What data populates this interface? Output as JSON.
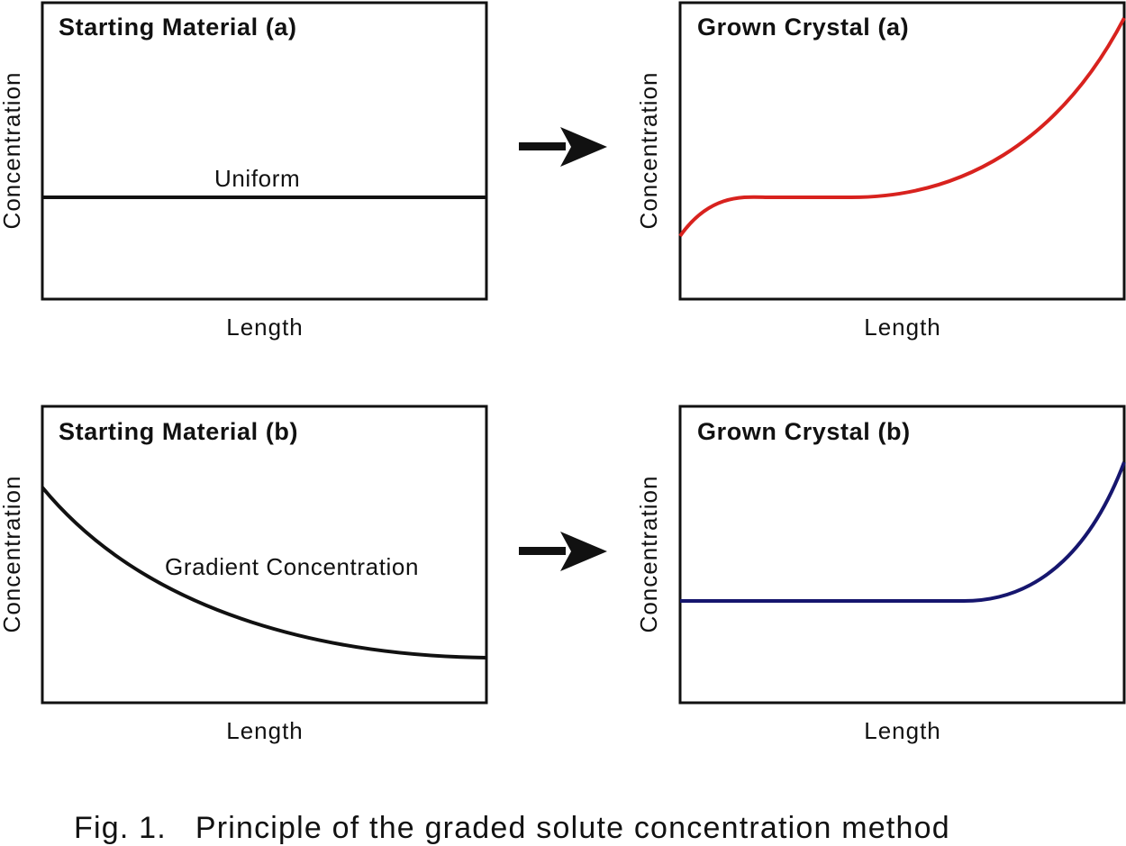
{
  "panels": {
    "start_a": {
      "title": "Starting Material (a)",
      "xlabel": "Length",
      "ylabel": "Concentration",
      "note": "Uniform",
      "curve_color": "#111111"
    },
    "grown_a": {
      "title": "Grown Crystal (a)",
      "xlabel": "Length",
      "ylabel": "Concentration",
      "curve_color": "#d8221e"
    },
    "start_b": {
      "title": "Starting Material (b)",
      "xlabel": "Length",
      "ylabel": "Concentration",
      "note": "Gradient Concentration",
      "curve_color": "#111111"
    },
    "grown_b": {
      "title": "Grown Crystal (b)",
      "xlabel": "Length",
      "ylabel": "Concentration",
      "curve_color": "#16166e"
    }
  },
  "arrows": {
    "color": "#111111",
    "icon": "right-arrow-icon"
  },
  "caption": "Fig. 1.   Principle of the graded solute concentration method"
}
